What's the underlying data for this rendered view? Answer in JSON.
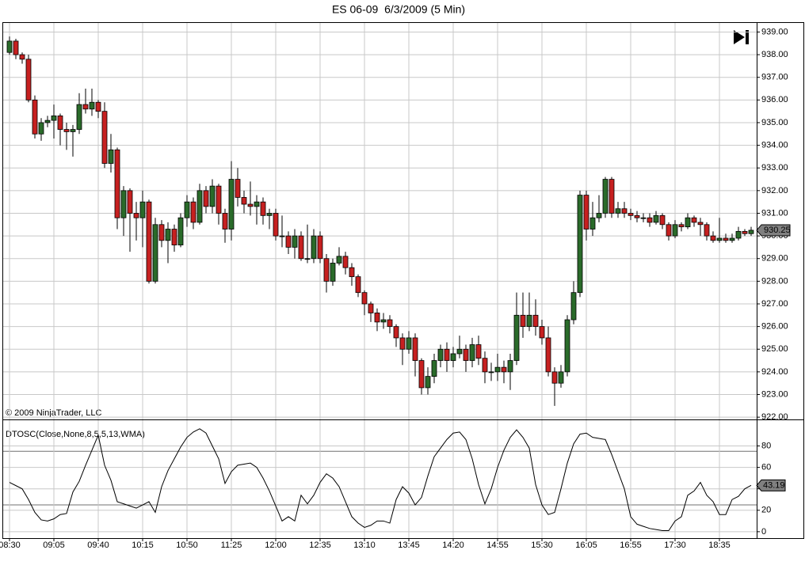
{
  "chart_data": [
    {
      "type": "candlestick",
      "title": "ES 06-09  6/3/2009 (5 Min)",
      "copyright": "© 2009 NinjaTrader, LLC",
      "categories": [
        "08:30",
        null,
        null,
        null,
        null,
        null,
        null,
        "09:05",
        null,
        null,
        null,
        null,
        null,
        null,
        "09:40",
        null,
        null,
        null,
        null,
        null,
        null,
        "10:15",
        null,
        null,
        null,
        null,
        null,
        null,
        "10:50",
        null,
        null,
        null,
        null,
        null,
        null,
        "11:25",
        null,
        null,
        null,
        null,
        null,
        null,
        "12:00",
        null,
        null,
        null,
        null,
        null,
        null,
        "12:35",
        null,
        null,
        null,
        null,
        null,
        null,
        "13:10",
        null,
        null,
        null,
        null,
        null,
        null,
        "13:45",
        null,
        null,
        null,
        null,
        null,
        null,
        "14:20",
        null,
        null,
        null,
        null,
        null,
        null,
        "14:55",
        null,
        null,
        null,
        null,
        null,
        null,
        "15:30",
        null,
        null,
        null,
        null,
        null,
        null,
        "16:05",
        null,
        null,
        null,
        null,
        null,
        null,
        "16:55",
        null,
        null,
        null,
        null,
        null,
        null,
        "17:30",
        null,
        null,
        null,
        null,
        null,
        null,
        "18:35",
        null,
        null,
        null,
        null,
        null
      ],
      "open": [
        938.1,
        938.6,
        938.0,
        937.8,
        936.0,
        934.5,
        935.0,
        935.1,
        935.3,
        934.7,
        934.6,
        934.7,
        935.8,
        935.6,
        935.9,
        935.5,
        933.2,
        933.8,
        930.8,
        932.0,
        931.0,
        930.8,
        931.5,
        928.0,
        930.5,
        929.8,
        930.3,
        929.6,
        930.8,
        931.5,
        930.6,
        932.0,
        931.3,
        932.2,
        931.0,
        930.3,
        932.5,
        931.7,
        931.4,
        931.3,
        931.5,
        930.9,
        931.0,
        930.0,
        930.0,
        929.5,
        930.0,
        929.0,
        929.0,
        930.0,
        929.0,
        928.0,
        928.8,
        929.1,
        928.6,
        928.2,
        927.5,
        927.0,
        926.6,
        926.2,
        926.3,
        926.0,
        925.5,
        925.0,
        925.5,
        924.5,
        923.3,
        923.8,
        924.5,
        925.0,
        924.5,
        924.8,
        925.0,
        924.5,
        925.2,
        924.6,
        924.0,
        924.0,
        924.2,
        924.0,
        924.5,
        926.5,
        926.0,
        926.5,
        926.0,
        925.5,
        924.0,
        923.5,
        924.0,
        926.3,
        927.5,
        931.8,
        930.3,
        930.8,
        931.0,
        932.5,
        931.0,
        931.2,
        931.0,
        930.9,
        930.8,
        930.8,
        930.6,
        930.9,
        930.5,
        930.0,
        930.5,
        930.4,
        930.8,
        930.6,
        930.5,
        930.0,
        929.8,
        929.9,
        929.8,
        929.9,
        930.2,
        930.1
      ],
      "high": [
        938.8,
        938.7,
        938.1,
        938.0,
        936.2,
        935.2,
        935.3,
        935.8,
        935.4,
        935.0,
        934.9,
        936.3,
        936.5,
        936.5,
        936.0,
        935.9,
        934.5,
        933.9,
        932.2,
        932.1,
        931.5,
        932.0,
        931.6,
        930.8,
        930.7,
        930.6,
        930.5,
        931.0,
        931.8,
        931.7,
        932.3,
        932.2,
        932.5,
        932.3,
        931.2,
        933.3,
        933.0,
        932.0,
        932.4,
        931.8,
        931.7,
        931.2,
        931.2,
        930.9,
        930.2,
        930.3,
        930.2,
        930.5,
        930.3,
        930.2,
        929.2,
        929.0,
        929.5,
        929.3,
        928.8,
        928.3,
        927.6,
        927.1,
        926.8,
        926.6,
        926.5,
        926.1,
        925.7,
        925.8,
        925.7,
        924.6,
        924.2,
        924.8,
        925.2,
        925.3,
        925.1,
        925.6,
        925.2,
        925.5,
        925.6,
        924.9,
        924.4,
        924.8,
        924.5,
        924.8,
        927.5,
        927.5,
        927.5,
        927.2,
        926.3,
        926.0,
        924.2,
        924.3,
        926.5,
        928.0,
        932.0,
        932.0,
        931.5,
        931.8,
        932.6,
        932.6,
        931.5,
        931.5,
        931.2,
        931.1,
        931.0,
        931.0,
        931.1,
        931.0,
        930.6,
        930.7,
        930.6,
        931.0,
        930.9,
        930.8,
        930.6,
        930.2,
        930.8,
        930.1,
        930.1,
        930.4,
        930.3,
        930.4
      ],
      "low": [
        938.0,
        937.8,
        937.6,
        935.9,
        934.3,
        934.2,
        934.8,
        934.3,
        934.0,
        933.8,
        933.5,
        934.5,
        935.4,
        935.3,
        935.2,
        933.0,
        932.8,
        930.3,
        930.0,
        929.3,
        929.8,
        929.5,
        927.9,
        927.9,
        929.5,
        928.8,
        929.3,
        929.5,
        930.4,
        930.3,
        930.5,
        931.0,
        931.0,
        930.5,
        929.7,
        929.8,
        931.3,
        931.0,
        930.9,
        930.5,
        930.5,
        930.3,
        929.8,
        929.5,
        929.2,
        929.0,
        928.9,
        928.8,
        928.8,
        928.8,
        927.5,
        927.8,
        928.7,
        928.3,
        927.8,
        927.3,
        926.5,
        926.2,
        925.8,
        925.9,
        925.7,
        925.1,
        924.3,
        924.8,
        923.8,
        923.0,
        923.0,
        923.5,
        924.2,
        924.0,
        924.2,
        924.6,
        924.0,
        924.2,
        924.3,
        923.5,
        923.6,
        923.6,
        923.5,
        923.2,
        924.3,
        925.5,
        925.8,
        925.6,
        925.2,
        923.8,
        922.5,
        923.3,
        923.8,
        926.1,
        927.3,
        929.8,
        930.0,
        930.6,
        930.8,
        930.8,
        930.8,
        930.8,
        930.7,
        930.6,
        930.6,
        930.4,
        930.5,
        930.3,
        929.8,
        929.9,
        930.2,
        930.3,
        930.4,
        930.0,
        929.8,
        929.7,
        929.7,
        929.7,
        929.7,
        929.8,
        930.0,
        930.0
      ],
      "close": [
        938.6,
        938.0,
        937.8,
        936.0,
        934.5,
        935.0,
        935.1,
        935.3,
        934.7,
        934.6,
        934.7,
        935.8,
        935.6,
        935.9,
        935.5,
        933.2,
        933.8,
        930.8,
        932.0,
        931.0,
        930.8,
        931.5,
        928.0,
        930.5,
        929.8,
        930.3,
        929.6,
        930.8,
        931.5,
        930.6,
        932.0,
        931.3,
        932.2,
        931.0,
        930.3,
        932.5,
        931.7,
        931.4,
        931.3,
        931.5,
        930.9,
        931.0,
        930.0,
        930.0,
        929.5,
        930.0,
        929.0,
        929.0,
        930.0,
        929.0,
        928.0,
        928.8,
        929.1,
        928.6,
        928.2,
        927.5,
        927.0,
        926.6,
        926.2,
        926.3,
        926.0,
        925.5,
        925.0,
        925.5,
        924.5,
        923.3,
        923.8,
        924.5,
        925.0,
        924.5,
        924.8,
        925.0,
        924.5,
        925.2,
        924.6,
        924.0,
        924.0,
        924.2,
        924.0,
        924.5,
        926.5,
        926.0,
        926.5,
        926.0,
        925.5,
        924.0,
        923.5,
        924.0,
        926.3,
        927.5,
        931.8,
        930.3,
        930.8,
        931.0,
        932.5,
        931.0,
        931.2,
        931.0,
        930.9,
        930.8,
        930.8,
        930.6,
        930.9,
        930.5,
        930.0,
        930.5,
        930.4,
        930.8,
        930.6,
        930.5,
        930.0,
        929.8,
        929.9,
        929.8,
        929.9,
        930.2,
        930.1,
        930.25
      ],
      "up_color": "#2a6b2a",
      "down_color": "#c62020",
      "ylim": [
        921.9,
        939.4
      ],
      "yticks": [
        {
          "value": 922,
          "label": "922.00"
        },
        {
          "value": 923,
          "label": "923.00"
        },
        {
          "value": 924,
          "label": "924.00"
        },
        {
          "value": 925,
          "label": "925.00"
        },
        {
          "value": 926,
          "label": "926.00"
        },
        {
          "value": 927,
          "label": "927.00"
        },
        {
          "value": 928,
          "label": "928.00"
        },
        {
          "value": 929,
          "label": "929.00"
        },
        {
          "value": 930,
          "label": "930.00"
        },
        {
          "value": 931,
          "label": "931.00"
        },
        {
          "value": 932,
          "label": "932.00"
        },
        {
          "value": 933,
          "label": "933.00"
        },
        {
          "value": 934,
          "label": "934.00"
        },
        {
          "value": 935,
          "label": "935.00"
        },
        {
          "value": 936,
          "label": "936.00"
        },
        {
          "value": 937,
          "label": "937.00"
        },
        {
          "value": 938,
          "label": "938.00"
        },
        {
          "value": 939,
          "label": "939.00"
        }
      ],
      "grid": true
    },
    {
      "type": "line",
      "title": "DTOSC(Close,None,8,5,5,13,WMA)",
      "color": "#000000",
      "values": [
        46,
        43,
        40,
        30,
        18,
        11,
        10,
        12,
        16,
        17,
        37,
        47,
        62,
        76,
        90,
        62,
        48,
        28,
        26,
        24,
        22,
        25,
        28,
        18,
        42,
        57,
        68,
        79,
        88,
        93,
        96,
        92,
        80,
        68,
        45,
        56,
        62,
        63,
        64,
        60,
        50,
        38,
        24,
        10,
        14,
        10,
        34,
        26,
        34,
        46,
        54,
        50,
        42,
        28,
        14,
        8,
        4,
        6,
        10,
        10,
        8,
        30,
        42,
        36,
        25,
        32,
        52,
        70,
        78,
        86,
        92,
        93,
        86,
        68,
        44,
        26,
        40,
        60,
        76,
        88,
        95,
        88,
        78,
        44,
        25,
        16,
        18,
        40,
        64,
        82,
        91,
        92,
        88,
        87,
        86,
        72,
        56,
        40,
        14,
        7,
        5,
        3,
        2,
        1,
        1,
        10,
        14,
        34,
        38,
        46,
        34,
        28,
        16,
        16,
        30,
        33,
        40,
        43.19
      ],
      "levels": [
        25,
        75
      ],
      "ylim": [
        -6,
        104
      ],
      "yticks": [
        0,
        20,
        40,
        60,
        80
      ],
      "grid": true
    }
  ]
}
